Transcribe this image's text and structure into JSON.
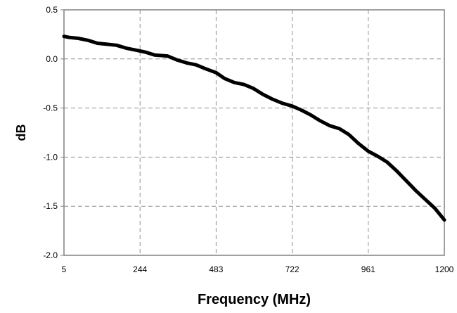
{
  "chart_data": {
    "type": "line",
    "title": "",
    "xlabel": "Frequency (MHz)",
    "ylabel": "dB",
    "xlim": [
      5,
      1200
    ],
    "ylim": [
      -2.0,
      0.5
    ],
    "x_ticks": [
      "5",
      "244",
      "483",
      "722",
      "961",
      "1200"
    ],
    "y_ticks": [
      "0.5",
      "0.0",
      "-0.5",
      "-1.0",
      "-1.5",
      "-2.0"
    ],
    "grid": "dashed",
    "series": [
      {
        "color": "#000000",
        "points": [
          [
            5,
            0.23
          ],
          [
            20,
            0.22
          ],
          [
            50,
            0.21
          ],
          [
            80,
            0.19
          ],
          [
            110,
            0.16
          ],
          [
            140,
            0.15
          ],
          [
            170,
            0.14
          ],
          [
            200,
            0.11
          ],
          [
            230,
            0.09
          ],
          [
            260,
            0.07
          ],
          [
            290,
            0.04
          ],
          [
            330,
            0.03
          ],
          [
            360,
            -0.01
          ],
          [
            390,
            -0.04
          ],
          [
            420,
            -0.06
          ],
          [
            450,
            -0.1
          ],
          [
            483,
            -0.14
          ],
          [
            510,
            -0.2
          ],
          [
            540,
            -0.24
          ],
          [
            570,
            -0.26
          ],
          [
            600,
            -0.3
          ],
          [
            630,
            -0.36
          ],
          [
            660,
            -0.41
          ],
          [
            690,
            -0.45
          ],
          [
            722,
            -0.48
          ],
          [
            750,
            -0.52
          ],
          [
            780,
            -0.57
          ],
          [
            810,
            -0.63
          ],
          [
            840,
            -0.68
          ],
          [
            870,
            -0.71
          ],
          [
            900,
            -0.77
          ],
          [
            930,
            -0.86
          ],
          [
            961,
            -0.94
          ],
          [
            990,
            -0.99
          ],
          [
            1020,
            -1.05
          ],
          [
            1050,
            -1.14
          ],
          [
            1080,
            -1.24
          ],
          [
            1110,
            -1.34
          ],
          [
            1140,
            -1.43
          ],
          [
            1170,
            -1.52
          ],
          [
            1200,
            -1.64
          ]
        ]
      }
    ]
  }
}
